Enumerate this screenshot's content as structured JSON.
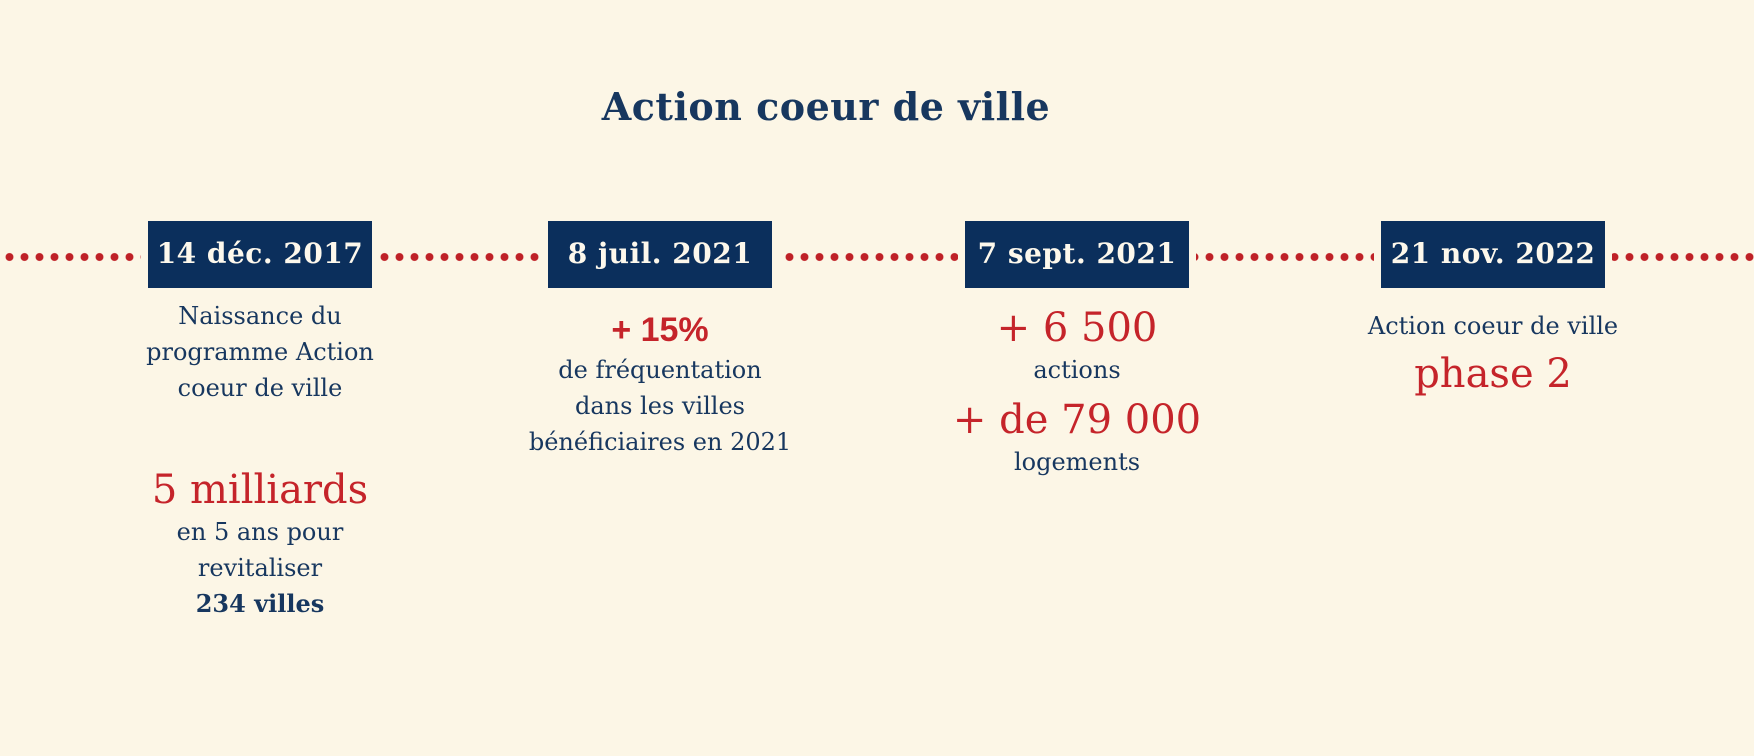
{
  "page": {
    "title": "Action coeur de ville"
  },
  "colors": {
    "background": "#fcf6e6",
    "navy_box": "#0b2f5c",
    "navy_text": "#17375f",
    "red_text": "#c5242a",
    "red_dots": "#bf2127",
    "date_text": "#fdf8ec"
  },
  "timeline": {
    "milestones": [
      {
        "date": "14 déc. 2017",
        "description_lines": [
          "Naissance du",
          "programme Action",
          "coeur de ville"
        ],
        "highlight": "5 milliards",
        "detail_lines": [
          "en 5 ans pour",
          "revitaliser"
        ],
        "detail_bold": "234 villes"
      },
      {
        "date": "8 juil. 2021",
        "highlight": "+ 15%",
        "detail_lines": [
          "de fréquentation",
          "dans les villes",
          "bénéficiaires en 2021"
        ]
      },
      {
        "date": "7 sept. 2021",
        "highlight": "+ 6 500",
        "highlight_label": "actions",
        "highlight2": "+ de 79 000",
        "highlight2_label": "logements"
      },
      {
        "date": "21 nov. 2022",
        "description_lines": [
          "Action coeur de ville"
        ],
        "highlight": "phase 2"
      }
    ]
  }
}
